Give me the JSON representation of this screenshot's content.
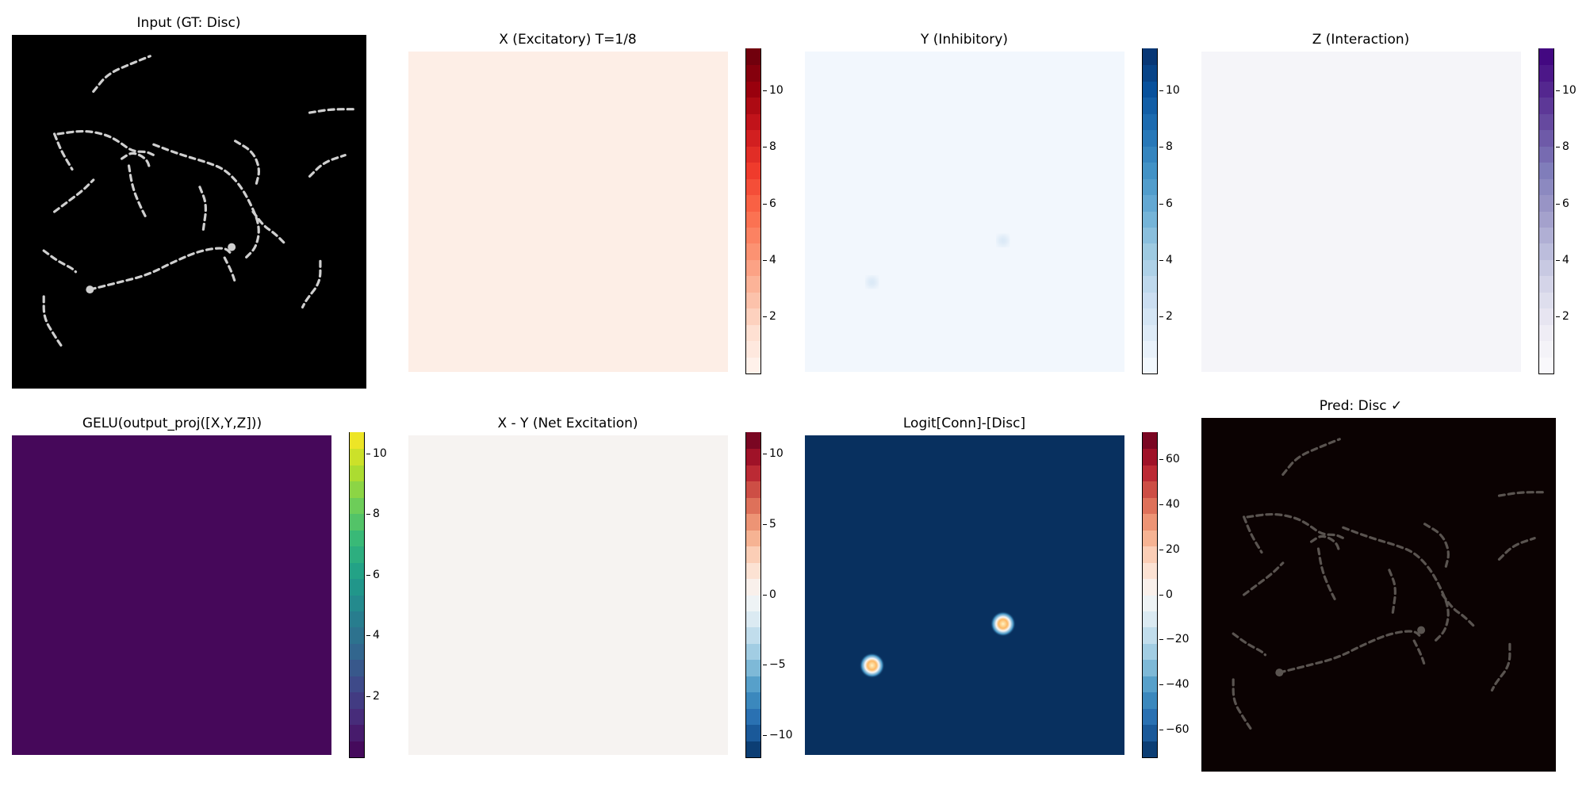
{
  "chart_data": [
    {
      "type": "heatmap",
      "title": "Input (GT: Disc)",
      "content": "dashed-curves",
      "colormap": "gray",
      "background": "#000000",
      "stroke": "#cfcfcf",
      "colorbar": null
    },
    {
      "type": "heatmap",
      "title": "X (Excitatory) T=1/8",
      "colormap": "Reds",
      "fill": "#fdeee6",
      "colorbar": {
        "range": [
          0,
          11.5
        ],
        "ticks": [
          2,
          4,
          6,
          8,
          10
        ],
        "levels": 20,
        "colors": [
          "#fff5f0",
          "#fee0d2",
          "#fcbba1",
          "#fc9272",
          "#fb6a4a",
          "#ef3b2c",
          "#cb181d",
          "#99000d",
          "#67000d"
        ]
      }
    },
    {
      "type": "heatmap",
      "title": "Y (Inhibitory)",
      "colormap": "Blues",
      "fill": "#f2f7fd",
      "spots": [
        {
          "x": 0.62,
          "y": 0.59
        },
        {
          "x": 0.21,
          "y": 0.72
        }
      ],
      "colorbar": {
        "range": [
          0,
          11.5
        ],
        "ticks": [
          2,
          4,
          6,
          8,
          10
        ],
        "levels": 20,
        "colors": [
          "#f7fbff",
          "#deebf7",
          "#c6dbef",
          "#9ecae1",
          "#6baed6",
          "#4292c6",
          "#2171b5",
          "#08519c",
          "#08306b"
        ]
      }
    },
    {
      "type": "heatmap",
      "title": "Z (Interaction)",
      "colormap": "Purples",
      "fill": "#f5f5f9",
      "colorbar": {
        "range": [
          0,
          11.5
        ],
        "ticks": [
          2,
          4,
          6,
          8,
          10
        ],
        "levels": 20,
        "colors": [
          "#fcfbfd",
          "#efedf5",
          "#dadaeb",
          "#bcbddc",
          "#9e9ac8",
          "#807dba",
          "#6a51a3",
          "#54278f",
          "#3f007d"
        ]
      }
    },
    {
      "type": "heatmap",
      "title": "GELU(output_proj([X,Y,Z]))",
      "colormap": "viridis",
      "fill": "#46085a",
      "colorbar": {
        "range": [
          0,
          10.7
        ],
        "ticks": [
          2,
          4,
          6,
          8,
          10
        ],
        "levels": 20,
        "colors": [
          "#440154",
          "#482878",
          "#3e4989",
          "#31688e",
          "#26828e",
          "#1f9e89",
          "#35b779",
          "#6ece58",
          "#b5de2b",
          "#fde725"
        ]
      }
    },
    {
      "type": "heatmap",
      "title": "X - Y (Net Excitation)",
      "colormap": "RdBu_r",
      "fill": "#f6f3f1",
      "colorbar": {
        "range": [
          -11.5,
          11.5
        ],
        "ticks": [
          -10,
          -5,
          0,
          5,
          10
        ],
        "levels": 20,
        "colors": [
          "#053061",
          "#2166ac",
          "#4393c3",
          "#92c5de",
          "#d1e5f0",
          "#f7f7f7",
          "#fddbc7",
          "#f4a582",
          "#d6604d",
          "#b2182b",
          "#67001f"
        ]
      }
    },
    {
      "type": "heatmap",
      "title": "Logit[Conn]-[Disc]",
      "colormap": "RdBu_r",
      "fill": "#08305f",
      "spots": [
        {
          "x": 0.62,
          "y": 0.59
        },
        {
          "x": 0.21,
          "y": 0.72
        }
      ],
      "colorbar": {
        "range": [
          -72,
          72
        ],
        "ticks": [
          -60,
          -40,
          -20,
          0,
          20,
          40,
          60
        ],
        "levels": 20,
        "colors": [
          "#053061",
          "#2166ac",
          "#4393c3",
          "#92c5de",
          "#d1e5f0",
          "#f7f7f7",
          "#fddbc7",
          "#f4a582",
          "#d6604d",
          "#b2182b",
          "#67001f"
        ]
      }
    },
    {
      "type": "heatmap",
      "title": "Pred: Disc ✓",
      "content": "dashed-curves",
      "colormap": "gray",
      "background": "#0b0202",
      "stroke": "#5a5450",
      "colorbar": null
    }
  ]
}
